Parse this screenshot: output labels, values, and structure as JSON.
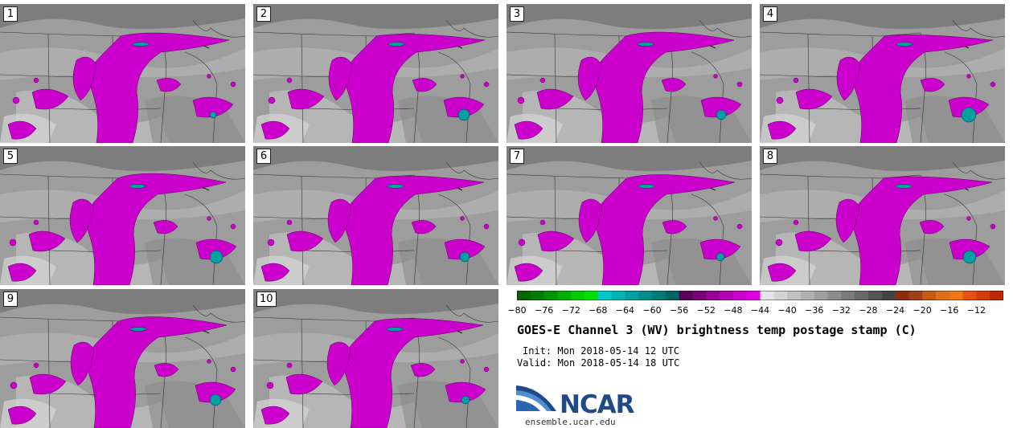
{
  "panels": [
    {
      "label": "1",
      "shift": 0
    },
    {
      "label": "2",
      "shift": 3
    },
    {
      "label": "3",
      "shift": -2
    },
    {
      "label": "4",
      "shift": 5
    },
    {
      "label": "5",
      "shift": -4
    },
    {
      "label": "6",
      "shift": 2
    },
    {
      "label": "7",
      "shift": -1
    },
    {
      "label": "8",
      "shift": 4
    },
    {
      "label": "9",
      "shift": -3
    },
    {
      "label": "10",
      "shift": 1
    }
  ],
  "colorbar": {
    "colors": [
      "#006400",
      "#007a00",
      "#009600",
      "#00b000",
      "#00cc00",
      "#00e000",
      "#00c8c8",
      "#00b4b4",
      "#00a0a0",
      "#008c8c",
      "#007a7a",
      "#006464",
      "#5a005a",
      "#780078",
      "#960096",
      "#b400b4",
      "#cc00cc",
      "#e100e1",
      "#e6e6e6",
      "#d4d4d4",
      "#c2c2c2",
      "#b0b0b0",
      "#9e9e9e",
      "#8c8c8c",
      "#7a7a7a",
      "#686868",
      "#565656",
      "#444444",
      "#8b2e10",
      "#a0401a",
      "#c85a14",
      "#e06e1e",
      "#f07814",
      "#e65014",
      "#d23c0a",
      "#be2800"
    ],
    "ticks": [
      "−80",
      "−76",
      "−72",
      "−68",
      "−64",
      "−60",
      "−56",
      "−52",
      "−48",
      "−44",
      "−40",
      "−36",
      "−32",
      "−28",
      "−24",
      "−20",
      "−16",
      "−12"
    ]
  },
  "title": "GOES-E Channel 3 (WV) brightness temp postage stamp (C)",
  "init_text": "Init: Mon 2018-05-14 12 UTC",
  "valid_text": "Valid: Mon 2018-05-14 18 UTC",
  "logo_text": "NCAR",
  "website": "ensemble.ucar.edu",
  "colors": {
    "magenta": "#cc00cc",
    "cyan": "#00a0a0",
    "background_gray": "#9a9a9a"
  }
}
